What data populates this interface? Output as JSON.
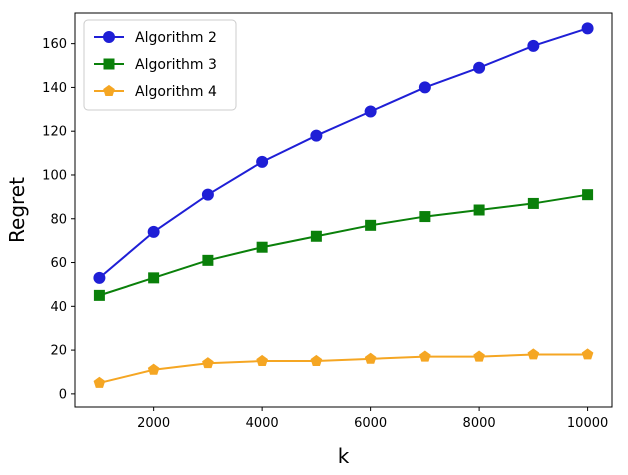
{
  "chart_data": {
    "type": "line",
    "title": "",
    "xlabel": "k",
    "ylabel": "Regret",
    "xlim": [
      550,
      10450
    ],
    "ylim": [
      -6,
      174
    ],
    "x_ticks": [
      2000,
      4000,
      6000,
      8000,
      10000
    ],
    "y_ticks": [
      0,
      20,
      40,
      60,
      80,
      100,
      120,
      140,
      160
    ],
    "grid": false,
    "legend_position": "upper left",
    "x": [
      1000,
      2000,
      3000,
      4000,
      5000,
      6000,
      7000,
      8000,
      9000,
      10000
    ],
    "series": [
      {
        "name": "Algorithm 2",
        "color": "#1f1fd6",
        "marker": "circle",
        "values": [
          53,
          74,
          91,
          106,
          118,
          129,
          140,
          149,
          159,
          167
        ]
      },
      {
        "name": "Algorithm 3",
        "color": "#0a800a",
        "marker": "square",
        "values": [
          45,
          53,
          61,
          67,
          72,
          77,
          81,
          84,
          87,
          91
        ]
      },
      {
        "name": "Algorithm 4",
        "color": "#f5a623",
        "marker": "pentagon",
        "values": [
          5,
          11,
          14,
          15,
          15,
          16,
          17,
          17,
          18,
          18
        ]
      }
    ]
  }
}
